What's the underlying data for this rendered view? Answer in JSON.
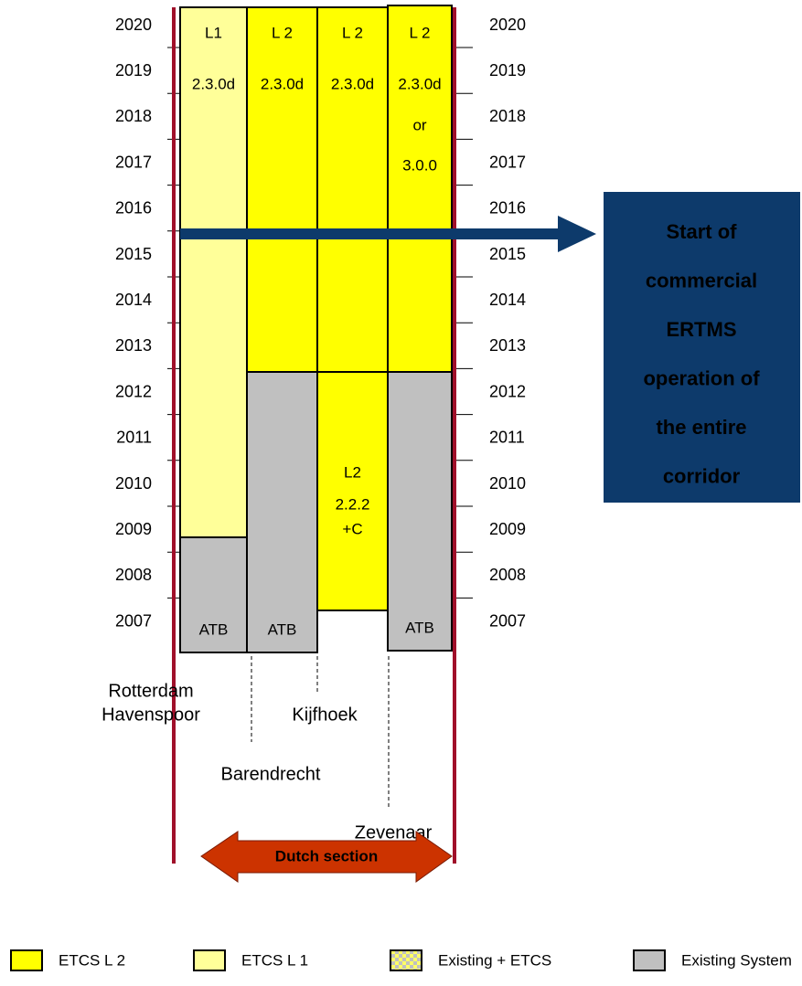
{
  "years": [
    "2020",
    "2019",
    "2018",
    "2017",
    "2016",
    "2015",
    "2014",
    "2013",
    "2012",
    "2011",
    "2010",
    "2009",
    "2008",
    "2007"
  ],
  "columns": [
    {
      "top": [
        "L1",
        "2.3.0d"
      ],
      "bottom": [
        "ATB"
      ]
    },
    {
      "top": [
        "L 2",
        "2.3.0d"
      ],
      "bottom": [
        "ATB"
      ]
    },
    {
      "top": [
        "L 2",
        "2.3.0d"
      ],
      "bottom": [
        "L2",
        "2.2.2",
        "+C"
      ]
    },
    {
      "top": [
        "L 2",
        "2.3.0d",
        "or",
        "3.0.0"
      ],
      "bottom": [
        "ATB"
      ]
    }
  ],
  "stations": [
    [
      "Rotterdam",
      "Havenspoor"
    ],
    [
      "Barendrecht"
    ],
    [
      "Kijfhoek"
    ],
    [
      "Zevenaar"
    ]
  ],
  "note": [
    "Start of",
    "commercial",
    "ERTMS",
    "operation of",
    "the entire",
    "corridor"
  ],
  "section": "Dutch section",
  "legend": [
    "ETCS L 2",
    "ETCS L 1",
    "Existing + ETCS",
    "Existing System"
  ]
}
